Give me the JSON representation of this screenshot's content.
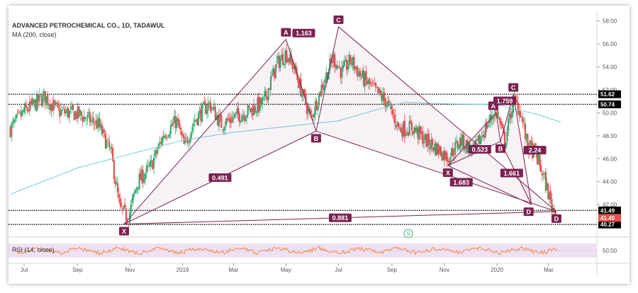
{
  "header": {
    "symbol_title": "ADVANCED PETROCHEMICAL CO., 1D, TADAWUL",
    "ma_label": "MA (200, close)",
    "rsi_label": "RSI (14, close)"
  },
  "colors": {
    "up": "#3cae76",
    "down": "#ec4e4d",
    "ma": "#7fd2de",
    "harmonic": "#7b2250",
    "harmonic_fill": "#7b2250",
    "rsi": "#f07f2c",
    "rsi_band": "#efe0f2"
  },
  "chart_data": {
    "type": "candlestick",
    "ylim": [
      39.6,
      58.6
    ],
    "y_ticks": [
      "58.00",
      "56.00",
      "54.00",
      "52.00",
      "50.00",
      "48.00",
      "46.00",
      "44.00",
      "42.00"
    ],
    "x_ticks": [
      "Jul",
      "Sep",
      "Nov",
      "2019",
      "Mar",
      "May",
      "Jul",
      "Sep",
      "Nov",
      "2020",
      "Mar"
    ],
    "x_tick_dates": [
      "2018-07-01",
      "2018-09-01",
      "2018-11-01",
      "2019-01-01",
      "2019-03-01",
      "2019-05-01",
      "2019-07-01",
      "2019-09-01",
      "2019-11-01",
      "2020-01-01",
      "2020-03-01"
    ],
    "close_anchors": [
      [
        "2018-06-15",
        48.6
      ],
      [
        "2018-07-01",
        50.1
      ],
      [
        "2018-07-25",
        51.4
      ],
      [
        "2018-08-10",
        50.1
      ],
      [
        "2018-09-01",
        49.9
      ],
      [
        "2018-09-25",
        49.0
      ],
      [
        "2018-10-10",
        46.5
      ],
      [
        "2018-10-20",
        41.6
      ],
      [
        "2018-10-30",
        40.9
      ],
      [
        "2018-11-10",
        44.0
      ],
      [
        "2018-11-25",
        45.3
      ],
      [
        "2018-12-10",
        48.1
      ],
      [
        "2018-12-25",
        49.3
      ],
      [
        "2019-01-03",
        47.0
      ],
      [
        "2019-01-15",
        49.4
      ],
      [
        "2019-02-01",
        50.8
      ],
      [
        "2019-02-15",
        49.0
      ],
      [
        "2019-03-01",
        49.6
      ],
      [
        "2019-03-20",
        50.2
      ],
      [
        "2019-04-05",
        50.9
      ],
      [
        "2019-04-20",
        54.2
      ],
      [
        "2019-05-01",
        55.2
      ],
      [
        "2019-05-10",
        54.0
      ],
      [
        "2019-05-22",
        51.2
      ],
      [
        "2019-05-30",
        49.5
      ],
      [
        "2019-06-12",
        52.4
      ],
      [
        "2019-06-25",
        54.8
      ],
      [
        "2019-07-05",
        53.5
      ],
      [
        "2019-07-15",
        54.6
      ],
      [
        "2019-07-28",
        53.1
      ],
      [
        "2019-08-10",
        52.1
      ],
      [
        "2019-08-25",
        51.0
      ],
      [
        "2019-09-10",
        48.6
      ],
      [
        "2019-09-25",
        48.7
      ],
      [
        "2019-10-10",
        47.6
      ],
      [
        "2019-10-25",
        46.8
      ],
      [
        "2019-11-05",
        46.1
      ],
      [
        "2019-11-20",
        47.6
      ],
      [
        "2019-12-05",
        46.6
      ],
      [
        "2019-12-20",
        48.9
      ],
      [
        "2019-12-31",
        50.3
      ],
      [
        "2020-01-10",
        47.4
      ],
      [
        "2020-01-20",
        51.1
      ],
      [
        "2020-01-28",
        50.2
      ],
      [
        "2020-02-05",
        47.2
      ],
      [
        "2020-02-15",
        46.4
      ],
      [
        "2020-02-25",
        44.2
      ],
      [
        "2020-03-05",
        41.8
      ],
      [
        "2020-03-10",
        41.4
      ]
    ],
    "ma_anchors": [
      [
        "2018-06-15",
        42.9
      ],
      [
        "2018-09-01",
        45.2
      ],
      [
        "2018-11-01",
        46.4
      ],
      [
        "2019-01-01",
        47.6
      ],
      [
        "2019-03-01",
        48.3
      ],
      [
        "2019-05-01",
        48.8
      ],
      [
        "2019-07-01",
        49.3
      ],
      [
        "2019-08-20",
        50.4
      ],
      [
        "2019-09-15",
        50.9
      ],
      [
        "2019-11-01",
        50.8
      ],
      [
        "2020-01-01",
        50.7
      ],
      [
        "2020-02-15",
        49.9
      ],
      [
        "2020-03-15",
        49.2
      ]
    ],
    "rsi_level": "50.00",
    "horizontal_levels": [
      {
        "value": 51.62,
        "label": "51.62",
        "style": "dotted",
        "label_bg": "#000000"
      },
      {
        "value": 50.74,
        "label": "50.74",
        "style": "dotted",
        "label_bg": "#000000"
      },
      {
        "value": 41.49,
        "label": "41.49",
        "style": "dotted",
        "label_bg": "#000000"
      },
      {
        "value": 40.27,
        "label": "40.27",
        "style": "dotted",
        "label_bg": "#000000"
      }
    ],
    "price_tags": [
      {
        "value": 41.4,
        "label": "41.40",
        "bg": "#ec4e4d"
      }
    ],
    "pattern_points": {
      "X1": [
        "2018-10-25",
        40.3
      ],
      "A1": [
        "2019-05-01",
        56.4
      ],
      "B1": [
        "2019-06-05",
        48.4
      ],
      "C1": [
        "2019-07-01",
        57.5
      ],
      "D1": [
        "2020-03-10",
        41.4
      ],
      "X2": [
        "2019-11-05",
        45.4
      ],
      "A2": [
        "2019-12-31",
        50.0
      ],
      "B2": [
        "2020-01-05",
        47.5
      ],
      "C2": [
        "2020-01-20",
        51.6
      ],
      "D2": [
        "2020-02-10",
        42.0
      ]
    },
    "point_labels": [
      "X",
      "A",
      "B",
      "C",
      "D",
      "X",
      "A",
      "B",
      "C",
      "D"
    ],
    "ratio_labels": [
      "0.491",
      "1.163",
      "0.881",
      "1.683",
      "0.523",
      "1.661",
      "1.759",
      "2.24"
    ],
    "event_marker": "S"
  }
}
